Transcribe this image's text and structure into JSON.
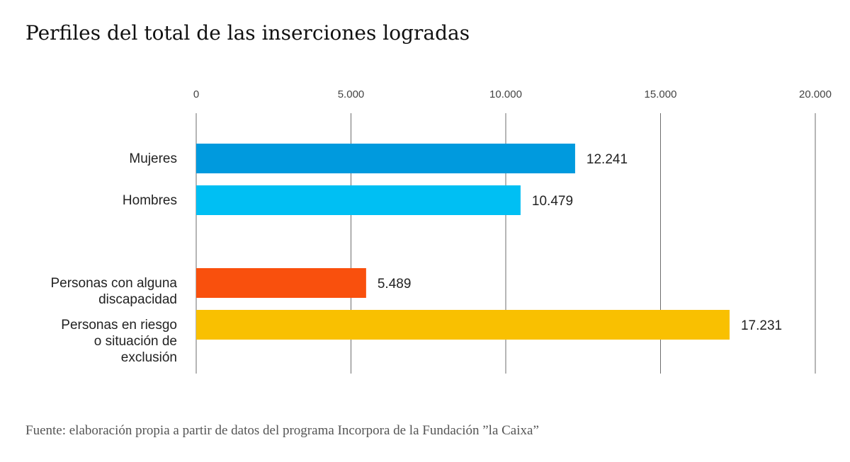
{
  "chart_data": {
    "type": "bar",
    "orientation": "horizontal",
    "title": "Perfiles del total de las inserciones logradas",
    "xlim": [
      0,
      20000
    ],
    "x_ticks": [
      0,
      5000,
      10000,
      15000,
      20000
    ],
    "x_tick_labels": [
      "0",
      "5.000",
      "10.000",
      "15.000",
      "20.000"
    ],
    "grid": "vertical",
    "categories": [
      [
        "Mujeres"
      ],
      [
        "Hombres"
      ],
      [
        "Personas con alguna",
        "discapacidad"
      ],
      [
        "Personas en riesgo",
        "o situación de",
        "exclusión"
      ]
    ],
    "values": [
      12241,
      10479,
      5489,
      17231
    ],
    "value_labels": [
      "12.241",
      "10.479",
      "5.489",
      "17.231"
    ],
    "colors": [
      "#009ADE",
      "#00BFF3",
      "#F9500D",
      "#F9C001"
    ],
    "source": "Fuente: elaboración propia a partir de datos del programa Incorpora de la Fundación ”la Caixa”"
  }
}
